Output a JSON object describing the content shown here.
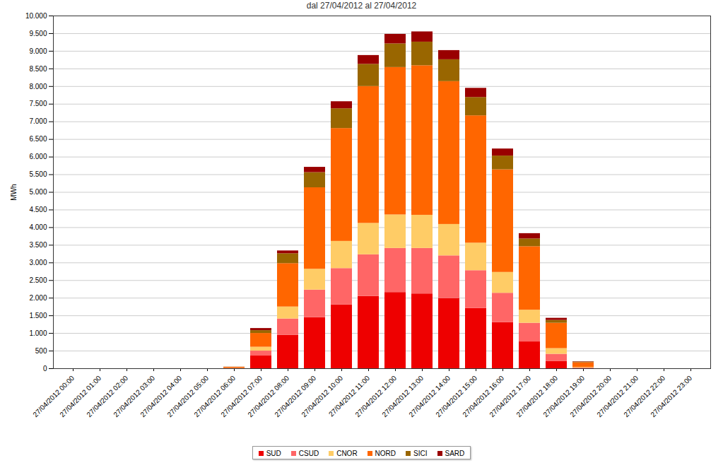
{
  "chart_data": {
    "type": "bar",
    "title": "dal 27/04/2012 al 27/04/2012",
    "y_label": "MWh",
    "stacked": true,
    "grid": true,
    "legend": "bottom",
    "categories": [
      "27/04/2012 00:00",
      "27/04/2012 01:00",
      "27/04/2012 02:00",
      "27/04/2012 03:00",
      "27/04/2012 04:00",
      "27/04/2012 05:00",
      "27/04/2012 06:00",
      "27/04/2012 07:00",
      "27/04/2012 08:00",
      "27/04/2012 09:00",
      "27/04/2012 10:00",
      "27/04/2012 11:00",
      "27/04/2012 12:00",
      "27/04/2012 13:00",
      "27/04/2012 14:00",
      "27/04/2012 15:00",
      "27/04/2012 16:00",
      "27/04/2012 17:00",
      "27/04/2012 18:00",
      "27/04/2012 19:00",
      "27/04/2012 20:00",
      "27/04/2012 21:00",
      "27/04/2012 22:00",
      "27/04/2012 23:00"
    ],
    "series": [
      {
        "name": "SUD",
        "color": "#ee0000",
        "values": [
          0,
          0,
          0,
          0,
          0,
          0,
          5,
          360,
          950,
          1450,
          1810,
          2050,
          2160,
          2120,
          1990,
          1710,
          1310,
          760,
          210,
          10,
          0,
          0,
          0,
          0
        ]
      },
      {
        "name": "CSUD",
        "color": "#ff6666",
        "values": [
          0,
          0,
          0,
          0,
          0,
          0,
          3,
          140,
          460,
          780,
          1030,
          1180,
          1250,
          1290,
          1210,
          1070,
          830,
          530,
          200,
          10,
          0,
          0,
          0,
          0
        ]
      },
      {
        "name": "CNOR",
        "color": "#ffcc66",
        "values": [
          0,
          0,
          0,
          0,
          0,
          0,
          3,
          110,
          340,
          590,
          770,
          890,
          950,
          940,
          890,
          780,
          590,
          370,
          160,
          20,
          0,
          0,
          0,
          0
        ]
      },
      {
        "name": "NORD",
        "color": "#ff6600",
        "values": [
          0,
          0,
          0,
          0,
          0,
          0,
          30,
          390,
          1230,
          2310,
          3200,
          3880,
          4180,
          4240,
          4050,
          3610,
          2910,
          1800,
          720,
          130,
          0,
          0,
          0,
          0
        ]
      },
      {
        "name": "SICI",
        "color": "#996600",
        "values": [
          0,
          0,
          0,
          0,
          0,
          0,
          3,
          80,
          280,
          430,
          560,
          630,
          670,
          670,
          620,
          520,
          390,
          220,
          80,
          20,
          0,
          0,
          0,
          0
        ]
      },
      {
        "name": "SARD",
        "color": "#990000",
        "values": [
          0,
          0,
          0,
          0,
          0,
          0,
          1,
          60,
          80,
          150,
          200,
          250,
          270,
          290,
          260,
          260,
          200,
          150,
          60,
          10,
          0,
          0,
          0,
          0
        ]
      }
    ],
    "ylim": [
      0,
      10000
    ],
    "yticks": [
      0,
      500,
      {
        "value": 1000,
        "label": "1.000"
      },
      {
        "value": 1500,
        "label": "1.500"
      },
      {
        "value": 2000,
        "label": "2.000"
      },
      {
        "value": 2500,
        "label": "2.500"
      },
      {
        "value": 3000,
        "label": "3.000"
      },
      {
        "value": 3500,
        "label": "3.500"
      },
      {
        "value": 4000,
        "label": "4.000"
      },
      {
        "value": 4500,
        "label": "4.500"
      },
      {
        "value": 5000,
        "label": "5.000"
      },
      {
        "value": 5500,
        "label": "5.500"
      },
      {
        "value": 6000,
        "label": "6.000"
      },
      {
        "value": 6500,
        "label": "6.500"
      },
      {
        "value": 7000,
        "label": "7.000"
      },
      {
        "value": 7500,
        "label": "7.500"
      },
      {
        "value": 8000,
        "label": "8.000"
      },
      {
        "value": 8500,
        "label": "8.500"
      },
      {
        "value": 9000,
        "label": "9.000"
      },
      {
        "value": 9500,
        "label": "9.500"
      },
      {
        "value": 10000,
        "label": "10.000"
      }
    ]
  }
}
